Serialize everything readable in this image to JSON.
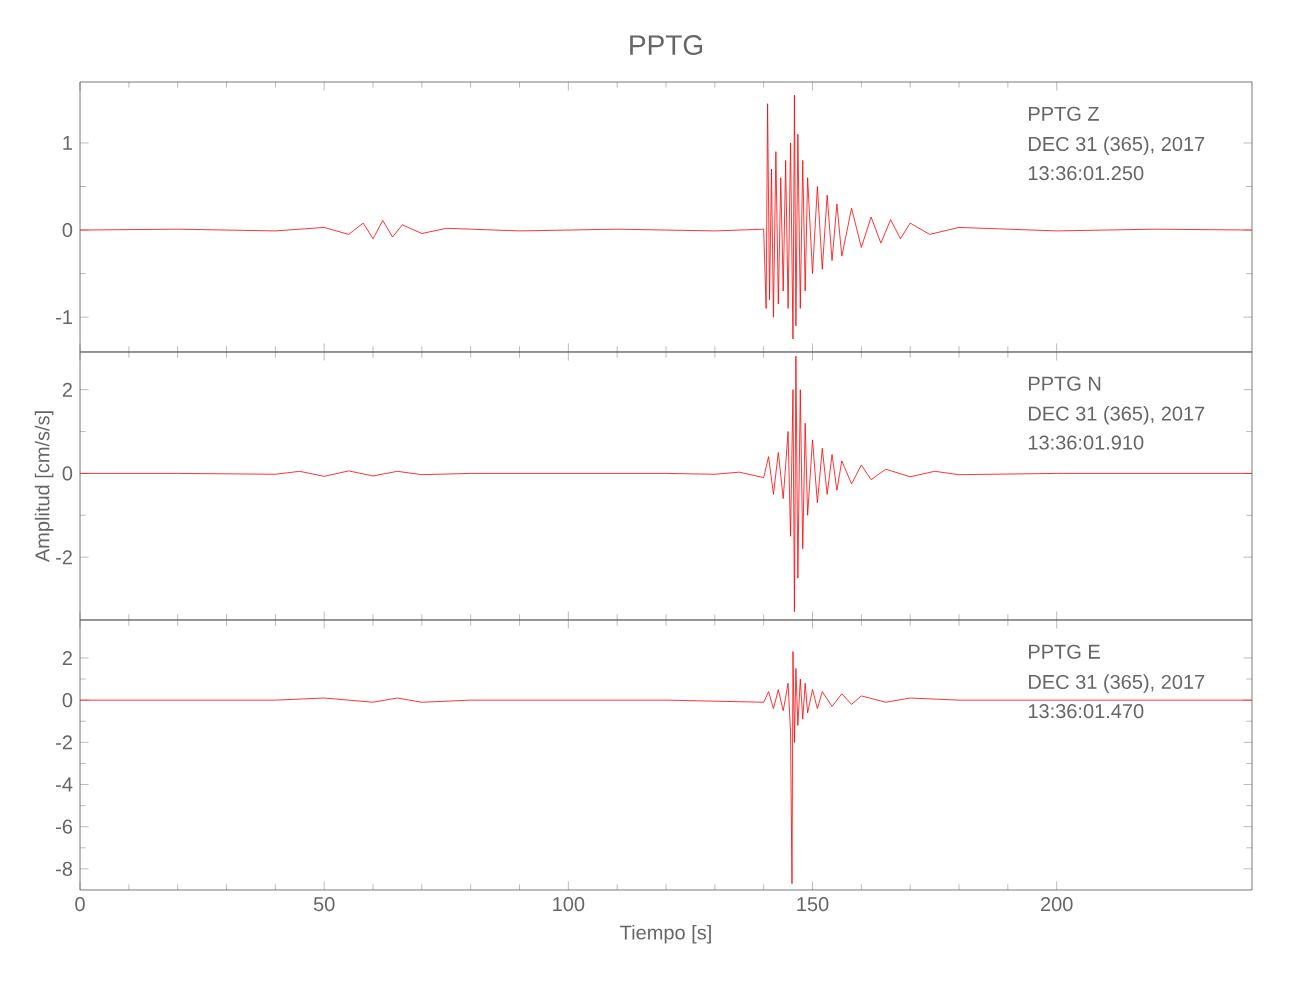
{
  "chart_data": [
    {
      "type": "line",
      "title": "PPTG",
      "annotations": [
        "PPTG   Z",
        "DEC 31 (365), 2017",
        "13:36:01.250"
      ],
      "xlim": [
        0,
        240
      ],
      "xticks": [
        0,
        50,
        100,
        150,
        200
      ],
      "ylim": [
        -1.4,
        1.7
      ],
      "yticks": [
        -1,
        0,
        1
      ],
      "tick_labels": "y",
      "series": [
        {
          "color": "#ff0000",
          "x": [
            0,
            20,
            40,
            50,
            55,
            58,
            60,
            62,
            64,
            66,
            70,
            75,
            90,
            110,
            130,
            140,
            140.5,
            140.8,
            141.2,
            141.6,
            142,
            142.5,
            143,
            143.5,
            144,
            144.5,
            145,
            145.5,
            146,
            146.3,
            146.6,
            147,
            147.5,
            148,
            148.5,
            149,
            150,
            151,
            152,
            153,
            154,
            155,
            156,
            158,
            160,
            162,
            164,
            166,
            168,
            170,
            174,
            180,
            200,
            220,
            240
          ],
          "values": [
            0,
            0.01,
            -0.01,
            0.03,
            -0.05,
            0.08,
            -0.1,
            0.11,
            -0.08,
            0.06,
            -0.04,
            0.02,
            -0.01,
            0.01,
            -0.01,
            0.01,
            -0.9,
            1.45,
            -0.8,
            0.7,
            -1.0,
            0.9,
            -0.85,
            0.6,
            -0.7,
            0.8,
            -0.9,
            1.0,
            -1.25,
            1.55,
            -1.1,
            1.1,
            -0.9,
            0.8,
            -0.7,
            0.6,
            -0.5,
            0.5,
            -0.45,
            0.4,
            -0.35,
            0.3,
            -0.3,
            0.25,
            -0.2,
            0.15,
            -0.15,
            0.12,
            -0.1,
            0.08,
            -0.05,
            0.03,
            -0.01,
            0.01,
            0
          ]
        }
      ]
    },
    {
      "type": "line",
      "ylabel": "Amplitud [cm/s/s]",
      "annotations": [
        "PPTG   N",
        "DEC 31 (365), 2017",
        "13:36:01.910"
      ],
      "xlim": [
        0,
        240
      ],
      "xticks": [
        0,
        50,
        100,
        150,
        200
      ],
      "ylim": [
        -3.5,
        2.9
      ],
      "yticks": [
        -2,
        0,
        2
      ],
      "tick_labels": "y",
      "series": [
        {
          "color": "#ff0000",
          "x": [
            0,
            20,
            40,
            45,
            50,
            55,
            60,
            65,
            70,
            80,
            100,
            120,
            130,
            135,
            140,
            141,
            142,
            143,
            144,
            145,
            145.5,
            146,
            146.3,
            146.6,
            147,
            147.5,
            148,
            148.5,
            149,
            150,
            151,
            152,
            153,
            154,
            155,
            156,
            158,
            160,
            162,
            165,
            170,
            175,
            180,
            200,
            220,
            240
          ],
          "values": [
            0,
            0,
            -0.02,
            0.05,
            -0.07,
            0.06,
            -0.06,
            0.05,
            -0.03,
            0,
            0,
            0,
            -0.02,
            0.03,
            -0.1,
            0.4,
            -0.5,
            0.5,
            -0.6,
            1.0,
            -1.5,
            2.0,
            -3.3,
            2.8,
            -2.5,
            2.0,
            -1.8,
            1.2,
            -1.0,
            0.8,
            -0.7,
            0.6,
            -0.5,
            0.45,
            -0.4,
            0.3,
            -0.25,
            0.2,
            -0.15,
            0.1,
            -0.08,
            0.05,
            -0.03,
            0,
            0,
            0
          ]
        }
      ]
    },
    {
      "type": "line",
      "xlabel": "Tiempo [s]",
      "annotations": [
        "PPTG   E",
        "DEC 31 (365), 2017",
        "13:36:01.470"
      ],
      "xlim": [
        0,
        240
      ],
      "xticks": [
        0,
        50,
        100,
        150,
        200
      ],
      "ylim": [
        -9,
        3.8
      ],
      "yticks": [
        -8,
        -6,
        -4,
        -2,
        0,
        2
      ],
      "series": [
        {
          "color": "#ff0000",
          "x": [
            0,
            20,
            40,
            50,
            60,
            65,
            70,
            80,
            100,
            120,
            140,
            141,
            142,
            143,
            144,
            145,
            145.5,
            145.8,
            146,
            146.3,
            146.6,
            147,
            147.5,
            148,
            148.5,
            149,
            150,
            151,
            152,
            154,
            156,
            158,
            160,
            165,
            170,
            180,
            200,
            220,
            240
          ],
          "values": [
            0,
            0,
            0,
            0.1,
            -0.1,
            0.1,
            -0.1,
            0,
            0,
            0,
            -0.1,
            0.4,
            -0.4,
            0.5,
            -0.5,
            0.8,
            -1.5,
            -8.7,
            2.3,
            -2.0,
            1.5,
            -1.2,
            1.0,
            -0.9,
            0.8,
            -0.6,
            0.5,
            -0.4,
            0.4,
            -0.3,
            0.3,
            -0.2,
            0.2,
            -0.1,
            0.1,
            0,
            0,
            0,
            0
          ]
        }
      ]
    }
  ]
}
